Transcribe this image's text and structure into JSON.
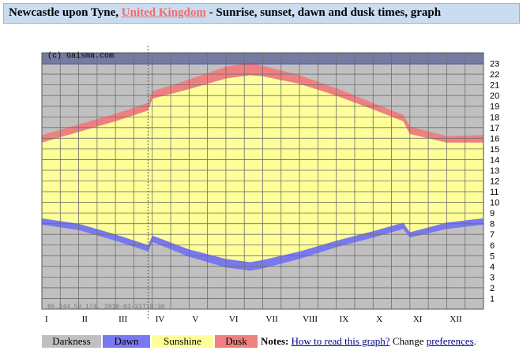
{
  "header": {
    "place": "Newcastle upon Tyne,",
    "country_link": "United Kingdom",
    "suffix": "- Sunrise, sunset, dawn and dusk times, graph"
  },
  "chart_data": {
    "type": "area",
    "watermark": "(c) Gaisma.com",
    "footer_stamp": "85.244.59.174, 2019-03-31T18:36",
    "x_tick_labels": [
      "I",
      "II",
      "III",
      "IV",
      "V",
      "VI",
      "VII",
      "VIII",
      "IX",
      "X",
      "XI",
      "XII"
    ],
    "y_tick_labels": [
      "1",
      "2",
      "3",
      "4",
      "5",
      "6",
      "7",
      "8",
      "9",
      "10",
      "11",
      "12",
      "13",
      "14",
      "15",
      "16",
      "17",
      "18",
      "19",
      "20",
      "21",
      "22",
      "23"
    ],
    "ylim": [
      0,
      24
    ],
    "dst_period": [
      "III-28",
      "X-26"
    ],
    "months": [
      "Jan",
      "Feb",
      "Mar",
      "Apr",
      "May",
      "Jun",
      "Jul",
      "Aug",
      "Sep",
      "Oct",
      "Nov",
      "Dec"
    ],
    "series": [
      {
        "name": "Dawn",
        "color": "#7878f0",
        "x": [
          "I-01",
          "II-01",
          "III-01",
          "III-28",
          "IV-01",
          "V-01",
          "VI-01",
          "VI-21",
          "VII-01",
          "VIII-01",
          "IX-01",
          "X-01",
          "X-26",
          "XI-01",
          "XII-01",
          "XII-31"
        ],
        "values": [
          7.9,
          7.4,
          6.4,
          5.4,
          6.3,
          4.9,
          3.9,
          3.6,
          3.8,
          4.7,
          5.8,
          6.7,
          7.5,
          6.7,
          7.5,
          7.9
        ]
      },
      {
        "name": "Sunrise",
        "color": "#ffff99",
        "x": [
          "I-01",
          "II-01",
          "III-01",
          "III-28",
          "IV-01",
          "V-01",
          "VI-01",
          "VI-21",
          "VII-01",
          "VIII-01",
          "IX-01",
          "X-01",
          "X-26",
          "XI-01",
          "XII-01",
          "XII-31"
        ],
        "values": [
          8.5,
          8.0,
          7.0,
          6.0,
          6.9,
          5.6,
          4.7,
          4.4,
          4.6,
          5.4,
          6.4,
          7.3,
          8.1,
          7.2,
          8.1,
          8.5
        ]
      },
      {
        "name": "Sunset",
        "color": "#ffff99",
        "x": [
          "I-01",
          "II-01",
          "III-01",
          "III-28",
          "IV-01",
          "V-01",
          "VI-01",
          "VI-21",
          "VII-01",
          "VIII-01",
          "IX-01",
          "X-01",
          "X-26",
          "XI-01",
          "XII-01",
          "XII-31"
        ],
        "values": [
          15.6,
          16.6,
          17.6,
          18.6,
          19.7,
          20.6,
          21.6,
          21.9,
          21.8,
          21.1,
          20.0,
          18.7,
          17.6,
          16.4,
          15.6,
          15.6
        ]
      },
      {
        "name": "Dusk",
        "color": "#f08080",
        "x": [
          "I-01",
          "II-01",
          "III-01",
          "III-28",
          "IV-01",
          "V-01",
          "VI-01",
          "VI-21",
          "VII-01",
          "VIII-01",
          "IX-01",
          "X-01",
          "X-26",
          "XI-01",
          "XII-01",
          "XII-31"
        ],
        "values": [
          16.3,
          17.3,
          18.3,
          19.3,
          20.4,
          21.5,
          22.7,
          23.1,
          22.8,
          21.9,
          20.7,
          19.3,
          18.2,
          17.1,
          16.2,
          16.3
        ]
      }
    ],
    "colors": {
      "darkness": "#c0c0c0",
      "dawn": "#7878f0",
      "sunshine": "#ffff99",
      "dusk": "#f08080"
    }
  },
  "legend": {
    "darkness": "Darkness",
    "dawn": "Dawn",
    "sunshine": "Sunshine",
    "dusk": "Dusk"
  },
  "notes": {
    "label": "Notes:",
    "link_how": "How to read this graph?",
    "change": "Change",
    "link_prefs": "preferences",
    "end": "."
  }
}
